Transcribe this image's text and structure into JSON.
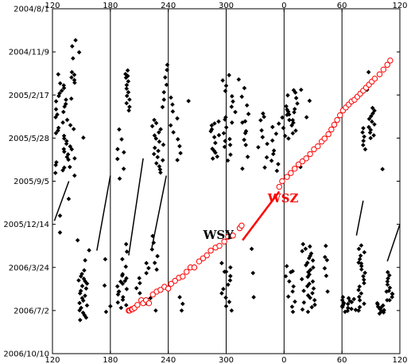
{
  "chart_data": {
    "type": "scatter",
    "title": "",
    "xlabel": "",
    "ylabel": "",
    "x_tick_labels": [
      "120",
      "180",
      "240",
      "300",
      "0",
      "60",
      "120"
    ],
    "y_tick_labels": [
      "2004/8/1",
      "2004/11/9",
      "2005/2/17",
      "2005/5/28",
      "2005/9/5",
      "2005/12/14",
      "2006/3/24",
      "2006/7/2",
      "2006/10/10"
    ],
    "xlim": [
      120,
      480
    ],
    "ylim": [
      "2004/8/1",
      "2006/10/10"
    ],
    "grid": "vertical lines at x tick positions",
    "colors": {
      "wsy": "#000000",
      "wsz": "#ff0000"
    },
    "annotations": [
      {
        "text": "WSY",
        "x": 292,
        "y": "2006/1/17"
      },
      {
        "text": "WSZ",
        "x": 359,
        "y": "2005/10/24"
      }
    ],
    "series": [
      {
        "marker": "filled-diamond",
        "color": "#000000",
        "bands": [
          {
            "x0": 123,
            "x1": 143,
            "y0": "2004/12/26",
            "y1": "2005/8/23",
            "n": 40
          },
          {
            "x0": 137,
            "x1": 148,
            "y0": "2004/10/13",
            "y1": "2004/11/24",
            "n": 4
          },
          {
            "x0": 125,
            "x1": 140,
            "y0": "2005/10/16",
            "y1": "2006/1/2",
            "n": 3
          },
          {
            "x0": 146,
            "x1": 158,
            "y0": "2006/1/20",
            "y1": "2006/4/23",
            "n": 5
          },
          {
            "x0": 147,
            "x1": 156,
            "y0": "2006/4/8",
            "y1": "2006/7/24",
            "n": 20
          },
          {
            "x0": 195,
            "x1": 200,
            "y0": "2004/12/22",
            "y1": "2005/3/25",
            "n": 12
          },
          {
            "x0": 186,
            "x1": 194,
            "y0": "2005/5/8",
            "y1": "2005/8/30",
            "n": 6
          },
          {
            "x0": 190,
            "x1": 198,
            "y0": "2006/1/29",
            "y1": "2006/4/26",
            "n": 6
          },
          {
            "x0": 187,
            "x1": 199,
            "y0": "2006/4/12",
            "y1": "2006/7/2",
            "n": 14
          },
          {
            "x0": 173,
            "x1": 178,
            "y0": "2006/3/5",
            "y1": "2006/7/5",
            "n": 3
          },
          {
            "x0": 222,
            "x1": 236,
            "y0": "2005/4/16",
            "y1": "2005/8/16",
            "n": 18
          },
          {
            "x0": 232,
            "x1": 239,
            "y0": "2004/12/21",
            "y1": "2005/3/17",
            "n": 6
          },
          {
            "x0": 242,
            "x1": 254,
            "y0": "2005/2/23",
            "y1": "2005/7/18",
            "n": 10
          },
          {
            "x0": 223,
            "x1": 230,
            "y0": "2006/1/10",
            "y1": "2006/3/29",
            "n": 6
          },
          {
            "x0": 207,
            "x1": 222,
            "y0": "2006/3/14",
            "y1": "2006/6/15",
            "n": 9
          },
          {
            "x0": 250,
            "x1": 255,
            "y0": "2006/6/1",
            "y1": "2006/7/2",
            "n": 3
          },
          {
            "x0": 284,
            "x1": 306,
            "y0": "2005/4/15",
            "y1": "2005/7/19",
            "n": 22
          },
          {
            "x0": 294,
            "x1": 310,
            "y0": "2005/1/2",
            "y1": "2005/4/22",
            "n": 10
          },
          {
            "x0": 313,
            "x1": 325,
            "y0": "2005/1/12",
            "y1": "2005/6/1",
            "n": 8
          },
          {
            "x0": 315,
            "x1": 325,
            "y0": "2005/4/19",
            "y1": "2005/8/7",
            "n": 5
          },
          {
            "x0": 295,
            "x1": 306,
            "y0": "2006/3/14",
            "y1": "2006/7/2",
            "n": 12
          },
          {
            "x0": 323,
            "x1": 330,
            "y0": "2006/2/9",
            "y1": "2006/6/1",
            "n": 3
          },
          {
            "x0": 333,
            "x1": 356,
            "y0": "2005/4/1",
            "y1": "2005/8/12",
            "n": 18
          },
          {
            "x0": 357,
            "x1": 376,
            "y0": "2005/3/23",
            "y1": "2005/5/29",
            "n": 12
          },
          {
            "x0": 362,
            "x1": 390,
            "y0": "2005/2/5",
            "y1": "2005/4/16",
            "n": 12
          },
          {
            "x0": 360,
            "x1": 372,
            "y0": "2006/3/21",
            "y1": "2006/7/5",
            "n": 10
          },
          {
            "x0": 378,
            "x1": 392,
            "y0": "2006/1/29",
            "y1": "2006/7/5",
            "n": 30
          },
          {
            "x0": 400,
            "x1": 405,
            "y0": "2006/2/2",
            "y1": "2006/3/26",
            "n": 3
          },
          {
            "x0": 403,
            "x1": 410,
            "y0": "2006/3/7",
            "y1": "2006/5/19",
            "n": 3
          },
          {
            "x0": 420,
            "x1": 435,
            "y0": "2006/6/1",
            "y1": "2006/7/5",
            "n": 16
          },
          {
            "x0": 437,
            "x1": 444,
            "y0": "2006/2/1",
            "y1": "2006/7/2",
            "n": 20
          },
          {
            "x0": 441,
            "x1": 448,
            "y0": "2005/5/5",
            "y1": "2005/6/23",
            "n": 6
          },
          {
            "x0": 446,
            "x1": 454,
            "y0": "2005/3/19",
            "y1": "2005/5/28",
            "n": 12
          },
          {
            "x0": 446,
            "x1": 449,
            "y0": "2004/12/26",
            "y1": "2005/2/5",
            "n": 2
          },
          {
            "x0": 456,
            "x1": 464,
            "y0": "2006/6/15",
            "y1": "2006/7/9",
            "n": 10
          },
          {
            "x0": 466,
            "x1": 473,
            "y0": "2006/4/4",
            "y1": "2006/6/8",
            "n": 10
          },
          {
            "x0": 465,
            "x1": 468,
            "y0": "2006/5/19",
            "y1": "2006/6/8",
            "n": 2
          }
        ],
        "points": [
          {
            "x": 126,
            "y": "2004/12/31"
          },
          {
            "x": 128,
            "y": "2005/1/21"
          },
          {
            "x": 134,
            "y": "2005/2/28"
          },
          {
            "x": 142,
            "y": "2005/5/7"
          },
          {
            "x": 140,
            "y": "2005/6/23"
          },
          {
            "x": 143,
            "y": "2005/7/14"
          },
          {
            "x": 138,
            "y": "2005/8/3"
          },
          {
            "x": 152,
            "y": "2005/5/27"
          },
          {
            "x": 194,
            "y": "2005/6/30"
          },
          {
            "x": 198,
            "y": "2005/1/4"
          },
          {
            "x": 261,
            "y": "2005/3/3"
          },
          {
            "x": 239,
            "y": "2004/12/9"
          },
          {
            "x": 315,
            "y": "2005/12/17"
          },
          {
            "x": 377,
            "y": "2005/8/3"
          },
          {
            "x": 370,
            "y": "2005/2/6"
          },
          {
            "x": 437,
            "y": "2006/7/2"
          },
          {
            "x": 462,
            "y": "2005/8/8"
          },
          {
            "x": 472,
            "y": "2006/5/24"
          },
          {
            "x": 300,
            "y": "2006/4/3"
          },
          {
            "x": 189,
            "y": "2006/5/19"
          },
          {
            "x": 180,
            "y": "2006/6/22"
          },
          {
            "x": 227,
            "y": "2006/7/2"
          },
          {
            "x": 367,
            "y": "2006/4/4"
          },
          {
            "x": 440,
            "y": "2006/3/15"
          }
        ]
      },
      {
        "marker": "open-circle",
        "color": "#ff0000",
        "points": [
          {
            "x": 199,
            "y": "2006/7/2"
          },
          {
            "x": 200,
            "y": "2006/7/2"
          },
          {
            "x": 202,
            "y": "2006/6/29"
          },
          {
            "x": 203,
            "y": "2006/6/29"
          },
          {
            "x": 205,
            "y": "2006/6/26"
          },
          {
            "x": 208,
            "y": "2006/6/19"
          },
          {
            "x": 212,
            "y": "2006/6/8"
          },
          {
            "x": 214,
            "y": "2006/6/15"
          },
          {
            "x": 217,
            "y": "2006/6/8"
          },
          {
            "x": 220,
            "y": "2006/6/15"
          },
          {
            "x": 224,
            "y": "2006/5/26"
          },
          {
            "x": 228,
            "y": "2006/5/19"
          },
          {
            "x": 232,
            "y": "2006/5/15"
          },
          {
            "x": 236,
            "y": "2006/5/8"
          },
          {
            "x": 240,
            "y": "2006/5/12"
          },
          {
            "x": 243,
            "y": "2006/5/1"
          },
          {
            "x": 247,
            "y": "2006/4/24"
          },
          {
            "x": 251,
            "y": "2006/4/17"
          },
          {
            "x": 255,
            "y": "2006/4/14"
          },
          {
            "x": 259,
            "y": "2006/4/3"
          },
          {
            "x": 263,
            "y": "2006/3/24"
          },
          {
            "x": 267,
            "y": "2006/3/24"
          },
          {
            "x": 272,
            "y": "2006/3/10"
          },
          {
            "x": 276,
            "y": "2006/3/3"
          },
          {
            "x": 280,
            "y": "2006/2/24"
          },
          {
            "x": 284,
            "y": "2006/2/13"
          },
          {
            "x": 289,
            "y": "2006/2/6"
          },
          {
            "x": 293,
            "y": "2006/2/2"
          },
          {
            "x": 298,
            "y": "2006/1/23"
          },
          {
            "x": 302,
            "y": "2006/1/12"
          },
          {
            "x": 307,
            "y": "2006/1/9"
          },
          {
            "x": 314,
            "y": "2005/12/23"
          },
          {
            "x": 316,
            "y": "2005/12/17"
          },
          {
            "x": 355,
            "y": "2005/9/18"
          },
          {
            "x": 358,
            "y": "2005/9/5"
          },
          {
            "x": 363,
            "y": "2005/8/26"
          },
          {
            "x": 367,
            "y": "2005/8/17"
          },
          {
            "x": 371,
            "y": "2005/8/7"
          },
          {
            "x": 375,
            "y": "2005/7/28"
          },
          {
            "x": 379,
            "y": "2005/7/21"
          },
          {
            "x": 383,
            "y": "2005/7/14"
          },
          {
            "x": 387,
            "y": "2005/7/4"
          },
          {
            "x": 391,
            "y": "2005/6/23"
          },
          {
            "x": 395,
            "y": "2005/6/16"
          },
          {
            "x": 399,
            "y": "2005/6/5"
          },
          {
            "x": 402,
            "y": "2005/5/29"
          },
          {
            "x": 406,
            "y": "2005/5/19"
          },
          {
            "x": 409,
            "y": "2005/5/8"
          },
          {
            "x": 412,
            "y": "2005/4/27"
          },
          {
            "x": 415,
            "y": "2005/4/16"
          },
          {
            "x": 418,
            "y": "2005/4/5"
          },
          {
            "x": 421,
            "y": "2005/3/25"
          },
          {
            "x": 424,
            "y": "2005/3/18"
          },
          {
            "x": 427,
            "y": "2005/3/11"
          },
          {
            "x": 430,
            "y": "2005/3/4"
          },
          {
            "x": 433,
            "y": "2005/2/28"
          },
          {
            "x": 436,
            "y": "2005/2/21"
          },
          {
            "x": 439,
            "y": "2005/2/14"
          },
          {
            "x": 442,
            "y": "2005/2/7"
          },
          {
            "x": 445,
            "y": "2005/1/31"
          },
          {
            "x": 448,
            "y": "2005/1/24"
          },
          {
            "x": 451,
            "y": "2005/1/17"
          },
          {
            "x": 454,
            "y": "2005/1/10"
          },
          {
            "x": 459,
            "y": "2004/12/31"
          },
          {
            "x": 463,
            "y": "2004/12/20"
          },
          {
            "x": 467,
            "y": "2004/12/9"
          },
          {
            "x": 470,
            "y": "2004/11/29"
          }
        ]
      }
    ],
    "trend_lines": [
      {
        "color": "#000000",
        "x1": 122,
        "y1": "2005/12/6",
        "x2": 137,
        "y2": "2005/9/5"
      },
      {
        "color": "#000000",
        "x1": 166,
        "y1": "2006/2/13",
        "x2": 180,
        "y2": "2005/8/23"
      },
      {
        "color": "#000000",
        "x1": 199,
        "y1": "2006/2/24",
        "x2": 214,
        "y2": "2005/7/14"
      },
      {
        "color": "#000000",
        "x1": 223,
        "y1": "2006/2/6",
        "x2": 238,
        "y2": "2005/8/23"
      },
      {
        "color": "#000000",
        "x1": 435,
        "y1": "2006/1/9",
        "x2": 442,
        "y2": "2005/10/20"
      },
      {
        "color": "#000000",
        "x1": 467,
        "y1": "2006/3/10",
        "x2": 480,
        "y2": "2005/12/14"
      },
      {
        "color": "#ff0000",
        "x1": 317,
        "y1": "2006/1/20",
        "x2": 355,
        "y2": "2005/9/29"
      }
    ]
  }
}
